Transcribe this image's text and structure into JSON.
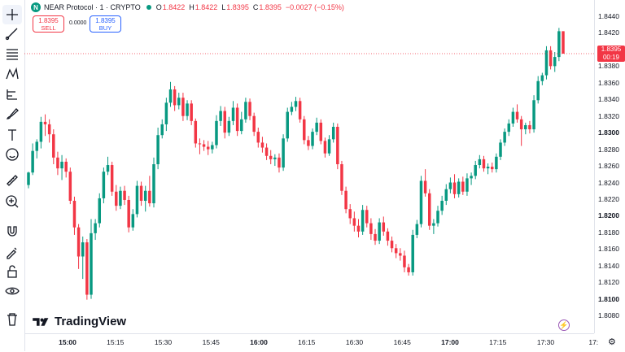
{
  "legend": {
    "logo_letter": "N",
    "symbol": "NEAR Protocol · 1 · CRYPTO",
    "open_label": "O",
    "open": "1.8422",
    "high_label": "H",
    "high": "1.8422",
    "low_label": "L",
    "low": "1.8395",
    "close_label": "C",
    "close": "1.8395",
    "change": "−0.0027 (−0.15%)"
  },
  "trade": {
    "sell_price": "1.8395",
    "sell_label": "SELL",
    "spread": "0.0000",
    "buy_price": "1.8395",
    "buy_label": "BUY"
  },
  "current_price": {
    "price": "1.8395",
    "countdown": "00:19"
  },
  "price_axis": {
    "ticks": [
      {
        "v": "1.8440",
        "b": false
      },
      {
        "v": "1.8420",
        "b": false
      },
      {
        "v": "1.8400",
        "b": false
      },
      {
        "v": "1.8380",
        "b": false
      },
      {
        "v": "1.8360",
        "b": false
      },
      {
        "v": "1.8340",
        "b": false
      },
      {
        "v": "1.8320",
        "b": false
      },
      {
        "v": "1.8300",
        "b": true
      },
      {
        "v": "1.8280",
        "b": false
      },
      {
        "v": "1.8260",
        "b": false
      },
      {
        "v": "1.8240",
        "b": false
      },
      {
        "v": "1.8220",
        "b": false
      },
      {
        "v": "1.8200",
        "b": true
      },
      {
        "v": "1.8180",
        "b": false
      },
      {
        "v": "1.8160",
        "b": false
      },
      {
        "v": "1.8140",
        "b": false
      },
      {
        "v": "1.8120",
        "b": false
      },
      {
        "v": "1.8100",
        "b": true
      },
      {
        "v": "1.8080",
        "b": false
      }
    ]
  },
  "time_axis": {
    "ticks": [
      {
        "t": "15:00",
        "b": true
      },
      {
        "t": "15:15",
        "b": false
      },
      {
        "t": "15:30",
        "b": false
      },
      {
        "t": "15:45",
        "b": false
      },
      {
        "t": "16:00",
        "b": true
      },
      {
        "t": "16:15",
        "b": false
      },
      {
        "t": "16:30",
        "b": false
      },
      {
        "t": "16:45",
        "b": false
      },
      {
        "t": "17:00",
        "b": true
      },
      {
        "t": "17:15",
        "b": false
      },
      {
        "t": "17:30",
        "b": false
      },
      {
        "t": "17:",
        "b": false
      }
    ]
  },
  "watermark": "TradingView",
  "toolbar": [
    "crosshair-icon",
    "trendline-icon",
    "fib-icon",
    "pattern-icon",
    "projection-icon",
    "brush-icon",
    "text-icon",
    "emoji-icon",
    "ruler-icon",
    "zoom-icon",
    "magnet-icon",
    "lock-drawing-icon",
    "lock-icon",
    "eye-icon",
    "trash-icon"
  ],
  "colors": {
    "up": "#089981",
    "down": "#f23645"
  },
  "chart_data": {
    "type": "candlestick",
    "interval": "1 minute",
    "ylim": [
      1.8075,
      1.8445
    ],
    "candles": [
      [
        1.8237,
        1.8253,
        1.8233,
        1.8252
      ],
      [
        1.8252,
        1.8287,
        1.8249,
        1.8278
      ],
      [
        1.8278,
        1.8292,
        1.8269,
        1.8289
      ],
      [
        1.8289,
        1.8319,
        1.8281,
        1.8313
      ],
      [
        1.8313,
        1.8322,
        1.8296,
        1.831
      ],
      [
        1.831,
        1.8316,
        1.8288,
        1.8298
      ],
      [
        1.8298,
        1.8304,
        1.8262,
        1.827
      ],
      [
        1.827,
        1.8277,
        1.8249,
        1.8257
      ],
      [
        1.8257,
        1.8273,
        1.8243,
        1.8265
      ],
      [
        1.8265,
        1.8269,
        1.8246,
        1.8253
      ],
      [
        1.8253,
        1.8258,
        1.8214,
        1.8218
      ],
      [
        1.8218,
        1.8223,
        1.8177,
        1.8186
      ],
      [
        1.8186,
        1.819,
        1.8136,
        1.8151
      ],
      [
        1.8151,
        1.8175,
        1.8124,
        1.8168
      ],
      [
        1.8168,
        1.8172,
        1.8099,
        1.8105
      ],
      [
        1.8105,
        1.8196,
        1.81,
        1.8179
      ],
      [
        1.8179,
        1.8196,
        1.8171,
        1.8191
      ],
      [
        1.8191,
        1.8227,
        1.8186,
        1.8221
      ],
      [
        1.8221,
        1.8258,
        1.8215,
        1.8253
      ],
      [
        1.8253,
        1.8271,
        1.8249,
        1.8261
      ],
      [
        1.8261,
        1.8265,
        1.8224,
        1.8229
      ],
      [
        1.8229,
        1.8237,
        1.8206,
        1.8212
      ],
      [
        1.8212,
        1.8235,
        1.8208,
        1.823
      ],
      [
        1.823,
        1.8236,
        1.8213,
        1.8219
      ],
      [
        1.8219,
        1.8224,
        1.818,
        1.8186
      ],
      [
        1.8186,
        1.8208,
        1.8182,
        1.8202
      ],
      [
        1.8202,
        1.8242,
        1.8198,
        1.8236
      ],
      [
        1.8236,
        1.8241,
        1.8212,
        1.8218
      ],
      [
        1.8218,
        1.8236,
        1.8205,
        1.823
      ],
      [
        1.823,
        1.8248,
        1.8211,
        1.8215
      ],
      [
        1.8215,
        1.827,
        1.821,
        1.8262
      ],
      [
        1.8262,
        1.8306,
        1.8256,
        1.8297
      ],
      [
        1.8297,
        1.8316,
        1.8293,
        1.831
      ],
      [
        1.831,
        1.8342,
        1.8302,
        1.8336
      ],
      [
        1.8336,
        1.8361,
        1.8331,
        1.8352
      ],
      [
        1.8352,
        1.8356,
        1.8326,
        1.8333
      ],
      [
        1.8333,
        1.8348,
        1.8328,
        1.8342
      ],
      [
        1.8342,
        1.8348,
        1.8314,
        1.832
      ],
      [
        1.832,
        1.8339,
        1.8315,
        1.8335
      ],
      [
        1.8335,
        1.8339,
        1.8309,
        1.8314
      ],
      [
        1.8314,
        1.8317,
        1.8282,
        1.8287
      ],
      [
        1.8287,
        1.8293,
        1.8274,
        1.8286
      ],
      [
        1.8286,
        1.8291,
        1.8278,
        1.8283
      ],
      [
        1.8283,
        1.829,
        1.8273,
        1.828
      ],
      [
        1.828,
        1.8289,
        1.8275,
        1.8285
      ],
      [
        1.8285,
        1.8321,
        1.8281,
        1.8314
      ],
      [
        1.8314,
        1.8332,
        1.8308,
        1.8326
      ],
      [
        1.8326,
        1.8331,
        1.8293,
        1.83
      ],
      [
        1.83,
        1.8319,
        1.8296,
        1.8314
      ],
      [
        1.8314,
        1.8338,
        1.8309,
        1.833
      ],
      [
        1.833,
        1.8335,
        1.8296,
        1.8302
      ],
      [
        1.8302,
        1.8325,
        1.8298,
        1.8316
      ],
      [
        1.8316,
        1.8342,
        1.8312,
        1.8337
      ],
      [
        1.8337,
        1.8341,
        1.8315,
        1.832
      ],
      [
        1.832,
        1.8324,
        1.8296,
        1.8301
      ],
      [
        1.8301,
        1.8306,
        1.8282,
        1.8288
      ],
      [
        1.8288,
        1.8295,
        1.8276,
        1.8282
      ],
      [
        1.8282,
        1.8287,
        1.8267,
        1.8272
      ],
      [
        1.8272,
        1.8279,
        1.8262,
        1.8268
      ],
      [
        1.8268,
        1.8274,
        1.826,
        1.827
      ],
      [
        1.827,
        1.8275,
        1.8252,
        1.8258
      ],
      [
        1.8258,
        1.8298,
        1.8254,
        1.8293
      ],
      [
        1.8293,
        1.833,
        1.8289,
        1.8325
      ],
      [
        1.8325,
        1.8337,
        1.8321,
        1.8331
      ],
      [
        1.8331,
        1.8343,
        1.8326,
        1.8338
      ],
      [
        1.8338,
        1.8342,
        1.8312,
        1.8316
      ],
      [
        1.8316,
        1.832,
        1.8286,
        1.8291
      ],
      [
        1.8291,
        1.8296,
        1.8279,
        1.8284
      ],
      [
        1.8284,
        1.8305,
        1.828,
        1.8301
      ],
      [
        1.8301,
        1.8318,
        1.8297,
        1.8312
      ],
      [
        1.8312,
        1.8316,
        1.8286,
        1.829
      ],
      [
        1.829,
        1.8294,
        1.827,
        1.8275
      ],
      [
        1.8275,
        1.8297,
        1.8272,
        1.8292
      ],
      [
        1.8292,
        1.8312,
        1.8288,
        1.8307
      ],
      [
        1.8307,
        1.8311,
        1.8256,
        1.8262
      ],
      [
        1.8262,
        1.8266,
        1.8225,
        1.823
      ],
      [
        1.823,
        1.8235,
        1.8203,
        1.8208
      ],
      [
        1.8208,
        1.8214,
        1.819,
        1.8197
      ],
      [
        1.8197,
        1.8205,
        1.8181,
        1.8188
      ],
      [
        1.8188,
        1.8196,
        1.8174,
        1.8181
      ],
      [
        1.8181,
        1.8213,
        1.8177,
        1.8207
      ],
      [
        1.8207,
        1.8212,
        1.8186,
        1.8191
      ],
      [
        1.8191,
        1.8197,
        1.8171,
        1.8178
      ],
      [
        1.8178,
        1.8184,
        1.8165,
        1.817
      ],
      [
        1.817,
        1.8197,
        1.8166,
        1.8192
      ],
      [
        1.8192,
        1.8199,
        1.8176,
        1.8181
      ],
      [
        1.8181,
        1.8185,
        1.8164,
        1.817
      ],
      [
        1.817,
        1.8175,
        1.8156,
        1.8161
      ],
      [
        1.8161,
        1.8166,
        1.8149,
        1.8155
      ],
      [
        1.8155,
        1.8161,
        1.8146,
        1.8152
      ],
      [
        1.8152,
        1.8158,
        1.8132,
        1.8138
      ],
      [
        1.8138,
        1.8142,
        1.8128,
        1.8132
      ],
      [
        1.8132,
        1.8183,
        1.8128,
        1.8177
      ],
      [
        1.8177,
        1.8195,
        1.8173,
        1.819
      ],
      [
        1.819,
        1.8248,
        1.8186,
        1.8242
      ],
      [
        1.8242,
        1.8256,
        1.8223,
        1.8227
      ],
      [
        1.8227,
        1.8232,
        1.8183,
        1.8188
      ],
      [
        1.8188,
        1.8196,
        1.8178,
        1.8191
      ],
      [
        1.8191,
        1.8212,
        1.8187,
        1.8206
      ],
      [
        1.8206,
        1.8224,
        1.8201,
        1.8218
      ],
      [
        1.8218,
        1.8238,
        1.8213,
        1.8232
      ],
      [
        1.8232,
        1.8246,
        1.8227,
        1.824
      ],
      [
        1.824,
        1.825,
        1.8221,
        1.8226
      ],
      [
        1.8226,
        1.8245,
        1.8222,
        1.8241
      ],
      [
        1.8241,
        1.8247,
        1.8225,
        1.8229
      ],
      [
        1.8229,
        1.8251,
        1.8224,
        1.8245
      ],
      [
        1.8245,
        1.8252,
        1.8237,
        1.8248
      ],
      [
        1.8248,
        1.8266,
        1.8244,
        1.8261
      ],
      [
        1.8261,
        1.8273,
        1.8257,
        1.8268
      ],
      [
        1.8268,
        1.8272,
        1.8253,
        1.8257
      ],
      [
        1.8257,
        1.8263,
        1.825,
        1.8259
      ],
      [
        1.8259,
        1.8264,
        1.8252,
        1.8256
      ],
      [
        1.8256,
        1.8275,
        1.8252,
        1.8271
      ],
      [
        1.8271,
        1.8292,
        1.8267,
        1.8288
      ],
      [
        1.8288,
        1.8305,
        1.8284,
        1.8301
      ],
      [
        1.8301,
        1.8316,
        1.8296,
        1.8311
      ],
      [
        1.8311,
        1.833,
        1.8307,
        1.8325
      ],
      [
        1.8325,
        1.8334,
        1.8312,
        1.8316
      ],
      [
        1.8316,
        1.832,
        1.8284,
        1.8304
      ],
      [
        1.8304,
        1.8312,
        1.8298,
        1.8309
      ],
      [
        1.8309,
        1.8314,
        1.8299,
        1.8304
      ],
      [
        1.8304,
        1.8345,
        1.83,
        1.8339
      ],
      [
        1.8339,
        1.8368,
        1.8335,
        1.8362
      ],
      [
        1.8362,
        1.8372,
        1.8357,
        1.8369
      ],
      [
        1.8369,
        1.8404,
        1.8364,
        1.8399
      ],
      [
        1.8399,
        1.8404,
        1.8376,
        1.838
      ],
      [
        1.838,
        1.8397,
        1.8373,
        1.8391
      ],
      [
        1.8391,
        1.8426,
        1.8386,
        1.8422
      ],
      [
        1.8422,
        1.8422,
        1.8395,
        1.8395
      ]
    ]
  }
}
